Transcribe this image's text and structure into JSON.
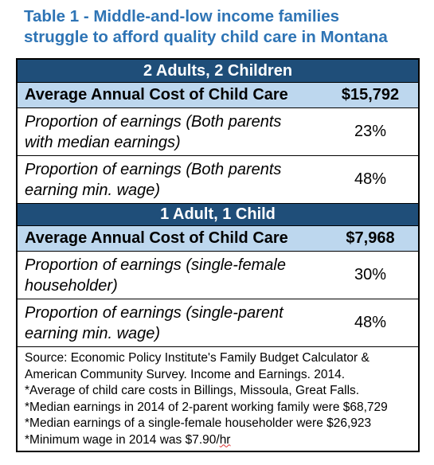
{
  "title_line1": "Table 1 - Middle-and-low income families",
  "title_line2": "struggle to afford quality child care in Montana",
  "sections": [
    {
      "header": "2 Adults, 2 Children",
      "cost_label": "Average Annual Cost of Child Care",
      "cost_value": "$15,792",
      "rows": [
        {
          "label_line1": "Proportion of earnings (Both parents",
          "label_line2": "with median earnings)",
          "value": "23%"
        },
        {
          "label_line1": "Proportion of earnings (Both parents",
          "label_line2": "earning min. wage)",
          "value": "48%"
        }
      ]
    },
    {
      "header": "1 Adult, 1 Child",
      "cost_label": "Average Annual Cost of Child Care",
      "cost_value": "$7,968",
      "rows": [
        {
          "label_line1": "Proportion of earnings (single-female",
          "label_line2": "householder)",
          "value": "30%"
        },
        {
          "label_line1": "Proportion of earnings (single-parent",
          "label_line2": "earning min. wage)",
          "value": "48%"
        }
      ]
    }
  ],
  "notes": {
    "source1": "Source: Economic Policy Institute's Family Budget Calculator &",
    "source2": "American Community Survey. Income and Earnings. 2014.",
    "n1": "*Average of child care costs in Billings, Missoula, Great Falls.",
    "n2": "*Median earnings in 2014 of 2-parent working family were $68,729",
    "n3": "*Median earnings of a single-female householder were $26,923",
    "n4_text": "*Minimum wage in 2014 was $7.90/",
    "n4_unit": "hr"
  }
}
